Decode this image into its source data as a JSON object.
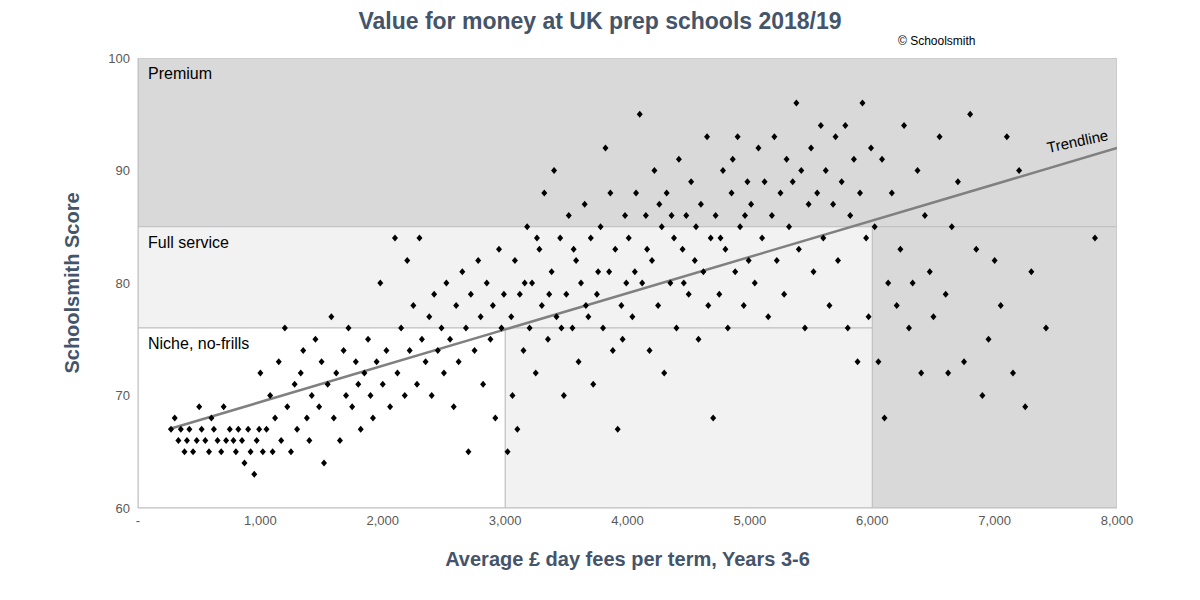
{
  "chart_data": {
    "type": "scatter",
    "title": "Value for money at UK prep schools 2018/19",
    "copyright": "© Schoolsmith",
    "x_label": "Average £ day fees per term, Years 3-6",
    "y_label": "Schoolsmith Score",
    "color": "#000000",
    "marker": "diamond",
    "grid": false,
    "x": [
      270,
      300,
      330,
      350,
      380,
      400,
      420,
      450,
      480,
      500,
      520,
      550,
      580,
      600,
      620,
      650,
      680,
      700,
      720,
      750,
      780,
      800,
      820,
      850,
      870,
      900,
      920,
      950,
      970,
      990,
      1000,
      1020,
      1050,
      1080,
      1100,
      1120,
      1150,
      1170,
      1200,
      1220,
      1250,
      1280,
      1300,
      1330,
      1350,
      1380,
      1400,
      1420,
      1450,
      1480,
      1500,
      1520,
      1550,
      1580,
      1600,
      1620,
      1650,
      1680,
      1700,
      1720,
      1750,
      1780,
      1800,
      1820,
      1850,
      1880,
      1900,
      1920,
      1950,
      1980,
      2000,
      2030,
      2060,
      2100,
      2120,
      2150,
      2180,
      2200,
      2220,
      2250,
      2280,
      2300,
      2320,
      2350,
      2380,
      2400,
      2420,
      2450,
      2480,
      2500,
      2520,
      2550,
      2580,
      2600,
      2620,
      2650,
      2680,
      2700,
      2720,
      2750,
      2780,
      2800,
      2820,
      2850,
      2880,
      2900,
      2920,
      2950,
      2970,
      2990,
      3020,
      3050,
      3080,
      3100,
      3120,
      3150,
      3180,
      3200,
      3220,
      3250,
      3280,
      3300,
      3320,
      3350,
      3380,
      3400,
      3420,
      3450,
      3480,
      3500,
      3520,
      3550,
      3580,
      3600,
      3620,
      3650,
      3680,
      3700,
      3720,
      3750,
      3780,
      3800,
      3820,
      3850,
      3880,
      3900,
      3920,
      3950,
      3980,
      3990,
      3060,
      3160,
      3260,
      3360,
      3460,
      3560,
      3660,
      3760,
      3860,
      3960,
      4010,
      4040,
      4070,
      4100,
      4120,
      4150,
      4180,
      4200,
      4220,
      4250,
      4280,
      4300,
      4320,
      4350,
      4380,
      4400,
      4420,
      4450,
      4480,
      4500,
      4520,
      4550,
      4580,
      4600,
      4620,
      4650,
      4680,
      4700,
      4720,
      4750,
      4780,
      4800,
      4820,
      4850,
      4880,
      4900,
      4920,
      4950,
      4980,
      4990,
      4060,
      4160,
      4260,
      4360,
      4460,
      4560,
      4660,
      4760,
      4860,
      4960,
      5010,
      5040,
      5070,
      5100,
      5120,
      5150,
      5180,
      5200,
      5220,
      5250,
      5280,
      5300,
      5320,
      5350,
      5380,
      5400,
      5420,
      5450,
      5480,
      5500,
      5520,
      5550,
      5580,
      5600,
      5620,
      5650,
      5680,
      5700,
      5720,
      5750,
      5780,
      5800,
      5820,
      5850,
      5880,
      5900,
      5920,
      5950,
      5970,
      5990,
      6020,
      6050,
      6080,
      6100,
      6130,
      6160,
      6200,
      6230,
      6260,
      6300,
      6330,
      6370,
      6400,
      6430,
      6470,
      6500,
      6550,
      6600,
      6620,
      6650,
      6700,
      6750,
      6800,
      6850,
      6900,
      6950,
      7000,
      7050,
      7100,
      7150,
      7200,
      7250,
      7300,
      7420,
      7820
    ],
    "values": [
      67,
      68,
      66,
      67,
      65,
      66,
      67,
      65,
      66,
      69,
      67,
      66,
      65,
      68,
      67,
      66,
      65,
      69,
      66,
      67,
      66,
      65,
      67,
      66,
      64,
      67,
      65,
      63,
      66,
      67,
      72,
      65,
      67,
      70,
      65,
      68,
      73,
      66,
      76,
      69,
      65,
      71,
      67,
      72,
      74,
      68,
      66,
      70,
      75,
      69,
      73,
      64,
      71,
      77,
      68,
      72,
      66,
      74,
      70,
      76,
      69,
      73,
      71,
      67,
      72,
      75,
      70,
      68,
      73,
      80,
      71,
      74,
      69,
      84,
      72,
      76,
      70,
      82,
      74,
      78,
      71,
      84,
      75,
      73,
      77,
      70,
      79,
      74,
      76,
      72,
      80,
      75,
      69,
      78,
      73,
      81,
      76,
      65,
      79,
      74,
      82,
      77,
      71,
      80,
      75,
      78,
      68,
      83,
      76,
      79,
      65,
      77,
      82,
      67,
      79,
      74,
      85,
      76,
      80,
      72,
      83,
      78,
      88,
      75,
      81,
      90,
      77,
      84,
      70,
      79,
      86,
      76,
      82,
      73,
      80,
      87,
      77,
      84,
      71,
      79,
      85,
      76,
      92,
      81,
      74,
      83,
      67,
      78,
      86,
      80,
      70,
      80,
      84,
      79,
      76,
      83,
      78,
      81,
      88,
      75,
      84,
      77,
      88,
      95,
      80,
      86,
      74,
      82,
      90,
      78,
      85,
      72,
      88,
      80,
      84,
      76,
      91,
      83,
      86,
      79,
      89,
      82,
      75,
      87,
      81,
      93,
      84,
      68,
      86,
      79,
      90,
      83,
      76,
      88,
      81,
      93,
      85,
      78,
      89,
      82,
      81,
      83,
      87,
      86,
      80,
      85,
      78,
      84,
      91,
      86,
      87,
      80,
      92,
      84,
      89,
      77,
      86,
      93,
      82,
      88,
      79,
      91,
      85,
      89,
      96,
      83,
      90,
      76,
      87,
      92,
      81,
      88,
      94,
      84,
      90,
      78,
      87,
      93,
      82,
      89,
      94,
      76,
      86,
      91,
      73,
      88,
      96,
      84,
      77,
      92,
      85,
      73,
      91,
      68,
      80,
      88,
      78,
      83,
      94,
      76,
      80,
      90,
      72,
      86,
      81,
      77,
      93,
      79,
      72,
      85,
      89,
      73,
      95,
      83,
      70,
      75,
      82,
      78,
      93,
      72,
      90,
      69,
      81,
      76,
      84
    ],
    "xlim": [
      0,
      8000
    ],
    "xticks": [
      {
        "value": 0,
        "label": "-"
      },
      {
        "value": 1000,
        "label": "1,000"
      },
      {
        "value": 2000,
        "label": "2,000"
      },
      {
        "value": 3000,
        "label": "3,000"
      },
      {
        "value": 4000,
        "label": "4,000"
      },
      {
        "value": 5000,
        "label": "5,000"
      },
      {
        "value": 6000,
        "label": "6,000"
      },
      {
        "value": 7000,
        "label": "7,000"
      },
      {
        "value": 8000,
        "label": "8,000"
      }
    ],
    "ylim": [
      60,
      100
    ],
    "yticks": [
      60,
      70,
      80,
      90,
      100
    ],
    "regions": [
      {
        "label": "Premium",
        "color": "#d9d9d9",
        "areas": [
          [
            0,
            8000,
            85,
            100
          ],
          [
            6000,
            8000,
            60,
            85
          ]
        ]
      },
      {
        "label": "Full service",
        "color": "#f2f2f2",
        "areas": [
          [
            0,
            6000,
            76,
            85
          ],
          [
            3000,
            6000,
            60,
            76
          ]
        ]
      },
      {
        "label": "Niche, no-frills",
        "color": "#ffffff",
        "areas": [
          [
            0,
            3000,
            60,
            76
          ]
        ]
      }
    ],
    "trendline": {
      "label": "Trendline",
      "x": [
        250,
        8000
      ],
      "values": [
        67,
        92
      ],
      "color": "#808080"
    }
  }
}
